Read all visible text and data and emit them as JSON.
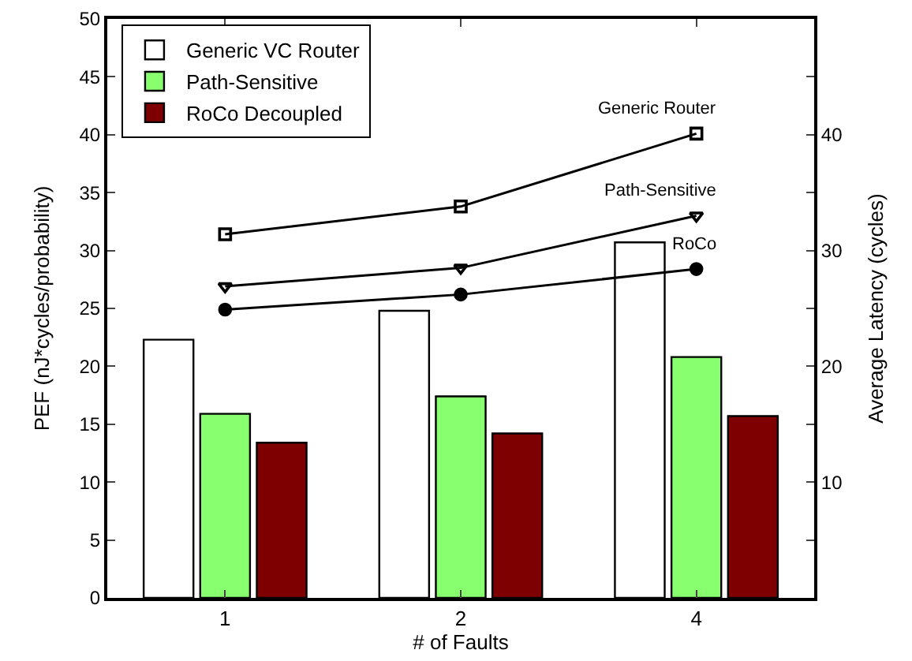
{
  "chart_data": {
    "type": "bar",
    "xlabel": "# of Faults",
    "ylabel": "PEF (nJ*cycles/probability)",
    "y2label": "Average Latency (cycles)",
    "categories": [
      "1",
      "2",
      "4"
    ],
    "series": [
      {
        "name": "Generic VC Router",
        "color": "#ffffff",
        "values": [
          22.3,
          24.8,
          30.7
        ]
      },
      {
        "name": "Path-Sensitive",
        "color": "#88ff6e",
        "values": [
          15.9,
          17.4,
          20.8
        ]
      },
      {
        "name": "RoCo Decoupled",
        "color": "#7f0000",
        "values": [
          13.4,
          14.2,
          15.7
        ]
      },
      {
        "name": "Generic Router",
        "type": "line",
        "axis": "y2",
        "marker": "square",
        "color": "#000000",
        "values": [
          31.4,
          33.8,
          40.1
        ]
      },
      {
        "name": "Path-Sensitive",
        "type": "line",
        "axis": "y2",
        "marker": "triangle",
        "color": "#000000",
        "values": [
          26.9,
          28.5,
          33
        ]
      },
      {
        "name": "RoCo",
        "type": "line",
        "axis": "y2",
        "marker": "circle",
        "color": "#000000",
        "values": [
          24.9,
          26.2,
          28.4
        ]
      }
    ],
    "ylim": [
      0,
      50
    ],
    "yticks": [
      0,
      5,
      10,
      15,
      20,
      25,
      30,
      35,
      40,
      45,
      50
    ],
    "y2lim": [
      0,
      50
    ],
    "y2ticks": [
      {
        "value": 5,
        "label": null
      },
      10,
      {
        "value": 15,
        "label": null
      },
      20,
      {
        "value": 25,
        "label": null
      },
      30,
      {
        "value": 35,
        "label": null
      },
      40,
      {
        "value": 45,
        "label": null
      }
    ],
    "legend": "top left",
    "grid": false
  }
}
